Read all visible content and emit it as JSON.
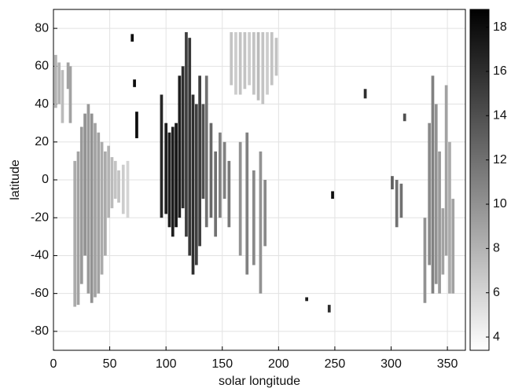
{
  "chart_data": {
    "type": "strip-scatter",
    "x_label": "solar longitude",
    "y_label": "latitude",
    "xlim": [
      0,
      366
    ],
    "ylim": [
      -90,
      90
    ],
    "xticks": [
      0,
      50,
      100,
      150,
      200,
      250,
      300,
      350
    ],
    "yticks": [
      -80,
      -60,
      -40,
      -20,
      0,
      20,
      40,
      60,
      80
    ],
    "grid": true,
    "colormap": "gray-reversed",
    "colorbar": {
      "lim": [
        3.4,
        18.8
      ],
      "ticks": [
        4,
        6,
        8,
        10,
        12,
        14,
        16,
        18
      ]
    },
    "x": [
      2,
      5,
      8,
      13,
      15,
      19,
      22,
      25,
      28,
      31,
      34,
      37,
      40,
      43,
      46,
      49,
      52,
      55,
      58,
      62,
      66,
      70,
      72,
      74,
      96,
      100,
      103,
      106,
      109,
      112,
      115,
      118,
      121,
      124,
      127,
      130,
      133,
      136,
      140,
      144,
      148,
      152,
      156,
      158,
      162,
      166,
      170,
      174,
      178,
      182,
      186,
      190,
      194,
      198,
      166,
      172,
      178,
      184,
      188,
      225,
      245,
      248,
      277,
      301,
      305,
      309,
      312,
      330,
      334,
      337,
      340,
      343,
      346,
      349,
      352,
      355
    ],
    "y_low": [
      38,
      40,
      30,
      48,
      30,
      -67,
      -66,
      -55,
      -40,
      -60,
      -65,
      -62,
      -60,
      -50,
      -40,
      -20,
      -15,
      -10,
      -12,
      -18,
      -20,
      73,
      49,
      22,
      -20,
      -18,
      -25,
      -30,
      -25,
      -20,
      -15,
      -30,
      -40,
      -50,
      -45,
      -35,
      -10,
      -25,
      -20,
      -30,
      -20,
      -10,
      -25,
      50,
      45,
      45,
      48,
      50,
      45,
      42,
      40,
      45,
      50,
      55,
      -40,
      -50,
      -45,
      -60,
      -35,
      -64,
      -70,
      -10,
      43,
      -5,
      -25,
      -20,
      31,
      -65,
      -45,
      -60,
      -55,
      -60,
      -50,
      -40,
      -60,
      -60
    ],
    "y_high": [
      66,
      62,
      58,
      62,
      60,
      10,
      15,
      28,
      35,
      40,
      35,
      30,
      25,
      20,
      15,
      18,
      12,
      10,
      5,
      8,
      10,
      77,
      53,
      36,
      45,
      30,
      25,
      28,
      30,
      55,
      60,
      78,
      75,
      45,
      40,
      55,
      40,
      55,
      30,
      15,
      25,
      20,
      10,
      78,
      78,
      78,
      78,
      78,
      78,
      78,
      78,
      78,
      78,
      75,
      20,
      25,
      5,
      15,
      0,
      -62,
      -66,
      -6,
      48,
      2,
      0,
      -2,
      35,
      -20,
      30,
      55,
      40,
      15,
      -15,
      50,
      20,
      -10
    ],
    "values": [
      8,
      8,
      7.5,
      9,
      9,
      8.5,
      9,
      9.5,
      10,
      9.5,
      10,
      9,
      9,
      8.5,
      8.5,
      8,
      7.5,
      7,
      7,
      6.5,
      6,
      18,
      18,
      18,
      16.5,
      17,
      17,
      17,
      17.5,
      17,
      16,
      15,
      15.5,
      16,
      15,
      15,
      14,
      12,
      12.5,
      12,
      11,
      11,
      11.5,
      7,
      6.5,
      7,
      7,
      6.5,
      7,
      7.5,
      7,
      6.5,
      7,
      7,
      10,
      11,
      10.5,
      10,
      10.5,
      17,
      16,
      18,
      16,
      13,
      12,
      12,
      14,
      10,
      10.5,
      11,
      10,
      9.5,
      9,
      9,
      8.5,
      9
    ]
  }
}
